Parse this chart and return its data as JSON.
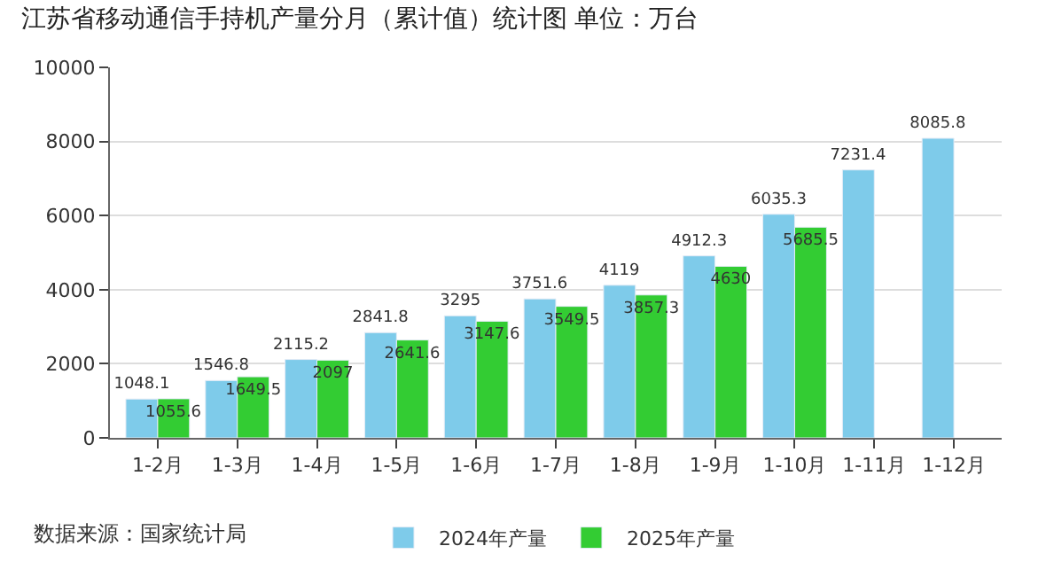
{
  "chart_data": {
    "type": "bar",
    "title": "江苏省移动通信手持机产量分月（累计值）统计图 单位：万台",
    "categories": [
      "1-2月",
      "1-3月",
      "1-4月",
      "1-5月",
      "1-6月",
      "1-7月",
      "1-8月",
      "1-9月",
      "1-10月",
      "1-11月",
      "1-12月"
    ],
    "series": [
      {
        "name": "2024年产量",
        "color": "#7ecbea",
        "values": [
          1048.1,
          1546.8,
          2115.2,
          2841.8,
          3295,
          3751.6,
          4119,
          4912.3,
          6035.3,
          7231.4,
          8085.8
        ]
      },
      {
        "name": "2025年产量",
        "color": "#33cc33",
        "values": [
          1055.6,
          1649.5,
          2097,
          2641.6,
          3147.6,
          3549.5,
          3857.3,
          4630,
          5685.5,
          null,
          null
        ]
      }
    ],
    "ylim": [
      0,
      10000
    ],
    "yticks": [
      0,
      2000,
      4000,
      6000,
      8000,
      10000
    ],
    "grid": "y",
    "legend": "bottom",
    "data_labels": true,
    "annotations": [
      "数据来源：国家统计局"
    ]
  }
}
